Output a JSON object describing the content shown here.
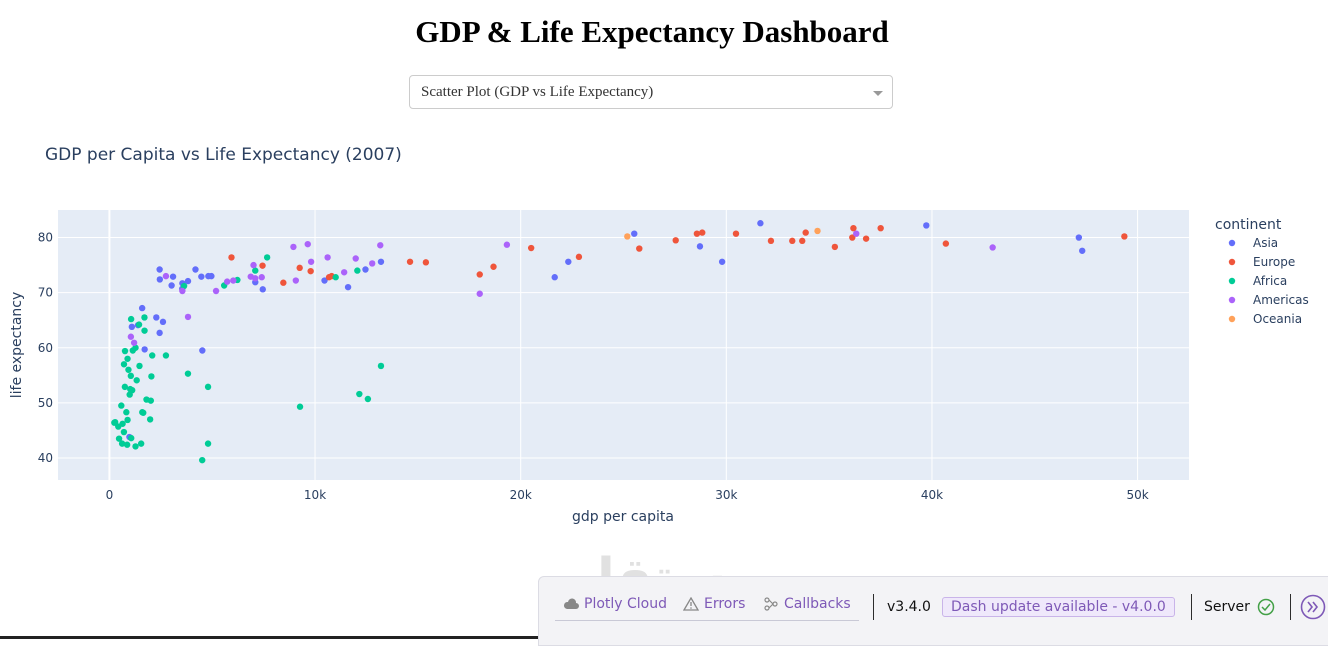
{
  "header": {
    "title": "GDP & Life Expectancy Dashboard"
  },
  "dropdown": {
    "selected": "Scatter Plot (GDP vs Life Expectancy)"
  },
  "chart_data": {
    "type": "scatter",
    "title": "GDP per Capita vs Life Expectancy (2007)",
    "xlabel": "gdp per capita",
    "ylabel": "life expectancy",
    "xlim": [
      -2500,
      52500
    ],
    "ylim": [
      36,
      85
    ],
    "xticks": [
      0,
      10000,
      20000,
      30000,
      40000,
      50000
    ],
    "xtick_labels": [
      "0",
      "10k",
      "20k",
      "30k",
      "40k",
      "50k"
    ],
    "yticks": [
      40,
      50,
      60,
      70,
      80
    ],
    "yticks_labels": [
      "40",
      "50",
      "60",
      "70",
      "80"
    ],
    "grid": true,
    "legend_title": "continent",
    "legend_position": "right",
    "series": [
      {
        "name": "Asia",
        "color": "#636efa",
        "points": [
          [
            974,
            43.8
          ],
          [
            1391,
            64.1
          ],
          [
            1714,
            59.7
          ],
          [
            2452,
            72.4
          ],
          [
            3548,
            71.7
          ],
          [
            4471,
            72.9
          ],
          [
            2605,
            64.7
          ],
          [
            4959,
            73.0
          ],
          [
            3541,
            70.7
          ],
          [
            3025,
            71.3
          ],
          [
            2442,
            62.7
          ],
          [
            4185,
            74.2
          ],
          [
            1593,
            67.2
          ],
          [
            1091,
            63.8
          ],
          [
            2280,
            65.5
          ],
          [
            3095,
            72.9
          ],
          [
            7458,
            70.6
          ],
          [
            7094,
            71.9
          ],
          [
            4519,
            59.5
          ],
          [
            3821,
            72.1
          ],
          [
            4813,
            73.0
          ],
          [
            11606,
            71.0
          ],
          [
            10461,
            72.2
          ],
          [
            12452,
            74.2
          ],
          [
            13206,
            75.6
          ],
          [
            21655,
            72.8
          ],
          [
            22316,
            75.6
          ],
          [
            25523,
            80.7
          ],
          [
            28718,
            78.4
          ],
          [
            29796,
            75.6
          ],
          [
            31657,
            82.6
          ],
          [
            39725,
            82.2
          ],
          [
            47143,
            80.0
          ],
          [
            47307,
            77.6
          ],
          [
            2442,
            74.2
          ]
        ]
      },
      {
        "name": "Europe",
        "color": "#ef553b",
        "points": [
          [
            5937,
            76.4
          ],
          [
            7446,
            74.9
          ],
          [
            8458,
            71.8
          ],
          [
            9253,
            74.5
          ],
          [
            9787,
            73.9
          ],
          [
            10680,
            72.8
          ],
          [
            10808,
            73.0
          ],
          [
            14619,
            75.6
          ],
          [
            15390,
            75.5
          ],
          [
            18009,
            73.3
          ],
          [
            18679,
            74.7
          ],
          [
            20510,
            78.1
          ],
          [
            22833,
            76.5
          ],
          [
            25768,
            78.0
          ],
          [
            27539,
            79.5
          ],
          [
            28570,
            80.7
          ],
          [
            28829,
            80.9
          ],
          [
            30470,
            80.7
          ],
          [
            32170,
            79.4
          ],
          [
            33207,
            79.4
          ],
          [
            33692,
            79.4
          ],
          [
            33860,
            80.9
          ],
          [
            35278,
            78.3
          ],
          [
            36126,
            80.0
          ],
          [
            36181,
            81.7
          ],
          [
            36798,
            79.8
          ],
          [
            37506,
            81.7
          ],
          [
            40676,
            78.9
          ],
          [
            49357,
            80.2
          ]
        ]
      },
      {
        "name": "Africa",
        "color": "#00cc96",
        "points": [
          [
            278,
            46.5
          ],
          [
            430,
            45.7
          ],
          [
            241,
            46.4
          ],
          [
            579,
            49.5
          ],
          [
            619,
            42.6
          ],
          [
            759,
            59.4
          ],
          [
            641,
            46.2
          ],
          [
            823,
            48.3
          ],
          [
            986,
            51.5
          ],
          [
            1107,
            52.3
          ],
          [
            926,
            56.0
          ],
          [
            1327,
            54.1
          ],
          [
            1463,
            56.7
          ],
          [
            1544,
            42.6
          ],
          [
            2082,
            58.6
          ],
          [
            863,
            42.4
          ],
          [
            1042,
            54.9
          ],
          [
            1441,
            64.2
          ],
          [
            1704,
            65.5
          ],
          [
            2042,
            54.8
          ],
          [
            2749,
            58.6
          ],
          [
            3632,
            71.2
          ],
          [
            4513,
            39.6
          ],
          [
            4797,
            52.9
          ],
          [
            5581,
            71.3
          ],
          [
            6223,
            72.3
          ],
          [
            7093,
            74.0
          ],
          [
            7670,
            76.4
          ],
          [
            9270,
            49.3
          ],
          [
            11004,
            72.8
          ],
          [
            12057,
            74.0
          ],
          [
            12154,
            51.6
          ],
          [
            12570,
            50.7
          ],
          [
            13206,
            56.7
          ],
          [
            1056,
            65.2
          ],
          [
            1270,
            60.0
          ],
          [
            1598,
            48.3
          ],
          [
            1803,
            50.6
          ],
          [
            2013,
            50.4
          ],
          [
            3820,
            55.3
          ],
          [
            470,
            43.5
          ],
          [
            706,
            44.7
          ],
          [
            1013,
            52.5
          ],
          [
            1060,
            43.6
          ],
          [
            1270,
            42.1
          ],
          [
            882,
            58.0
          ],
          [
            1708,
            63.1
          ],
          [
            752,
            52.9
          ],
          [
            883,
            46.9
          ],
          [
            1646,
            48.2
          ],
          [
            1137,
            59.5
          ],
          [
            709,
            57.0
          ],
          [
            4797,
            42.6
          ],
          [
            1981,
            47.0
          ]
        ]
      },
      {
        "name": "Americas",
        "color": "#ab63fa",
        "points": [
          [
            1201,
            60.9
          ],
          [
            1044,
            62.0
          ],
          [
            3822,
            65.6
          ],
          [
            5186,
            70.3
          ],
          [
            5728,
            72.0
          ],
          [
            6025,
            72.2
          ],
          [
            6873,
            72.9
          ],
          [
            7008,
            75.0
          ],
          [
            7408,
            72.8
          ],
          [
            7092,
            72.6
          ],
          [
            8948,
            78.3
          ],
          [
            9065,
            72.2
          ],
          [
            9645,
            78.8
          ],
          [
            10611,
            76.4
          ],
          [
            11978,
            76.2
          ],
          [
            12779,
            75.3
          ],
          [
            11416,
            73.7
          ],
          [
            13172,
            78.6
          ],
          [
            18009,
            69.8
          ],
          [
            19329,
            78.7
          ],
          [
            36319,
            80.7
          ],
          [
            42952,
            78.2
          ],
          [
            9809,
            75.6
          ],
          [
            2749,
            73.0
          ],
          [
            3548,
            70.3
          ]
        ]
      },
      {
        "name": "Oceania",
        "color": "#ffa15a",
        "points": [
          [
            25185,
            80.2
          ],
          [
            34435,
            81.2
          ]
        ]
      }
    ]
  },
  "devtools": {
    "cloud_label": "Plotly Cloud",
    "errors_label": "Errors",
    "callbacks_label": "Callbacks",
    "version": "v3.4.0",
    "update_label": "Dash update available - v4.0.0",
    "server_label": "Server",
    "purple": "#7e59b7",
    "green": "#43a047"
  }
}
